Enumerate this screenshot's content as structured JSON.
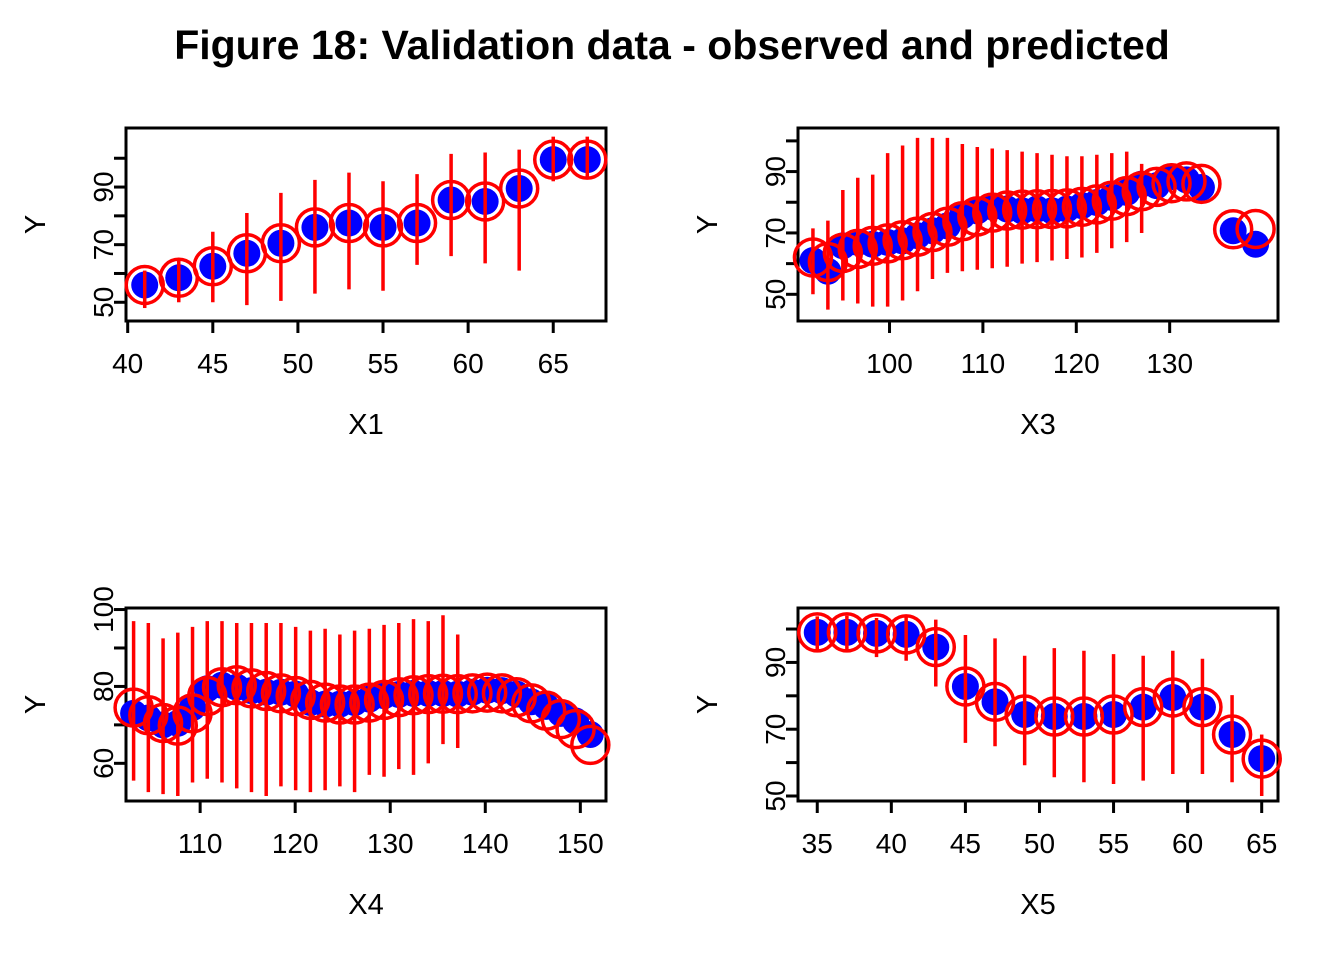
{
  "chart_data": {
    "type": "scatter",
    "title": "Figure 18: Validation data - observed and predicted",
    "grid": "off",
    "legend": "none",
    "colors": {
      "observed": "#0000ff",
      "predicted": "#ff0000",
      "axis": "#000000",
      "background": "#ffffff"
    },
    "marker_semantics": {
      "observed": "solid blue filled circle",
      "predicted": "open red circle",
      "interval": "red vertical line (prediction interval)"
    },
    "panels": [
      {
        "id": "x1",
        "xlabel": "X1",
        "ylabel": "Y",
        "xlim": [
          39.9,
          68.1
        ],
        "ylim": [
          43.5,
          110.5
        ],
        "xticks": [
          40,
          45,
          50,
          55,
          60,
          65
        ],
        "yticks": [
          50,
          60,
          70,
          80,
          90,
          100
        ],
        "ytick_labels": [
          50,
          70,
          90
        ],
        "x": [
          41,
          43,
          45,
          47,
          49,
          51,
          53,
          55,
          57,
          59,
          61,
          63,
          65,
          67
        ],
        "observed": [
          56,
          58.5,
          62.5,
          67,
          70.5,
          76,
          77.5,
          76,
          77.5,
          85.5,
          85,
          89.5,
          99.5,
          99.5
        ],
        "predicted": [
          56,
          58.5,
          62.5,
          67,
          70.5,
          76,
          77.5,
          76,
          77.5,
          85.5,
          85,
          89.5,
          99.5,
          99.5
        ],
        "ci_low": [
          48,
          50,
          50,
          49,
          50.5,
          53,
          54.5,
          54,
          63,
          66,
          63.5,
          61,
          92,
          93
        ],
        "ci_high": [
          61,
          64.5,
          74.5,
          81,
          88,
          92.5,
          95,
          92,
          94.5,
          101.5,
          102,
          103,
          107.5,
          107.5
        ]
      },
      {
        "id": "x3",
        "xlabel": "X3",
        "ylabel": "Y",
        "xlim": [
          90.2,
          141.6
        ],
        "ylim": [
          41.3,
          104.2
        ],
        "xticks": [
          100,
          110,
          120,
          130
        ],
        "yticks": [
          50,
          60,
          70,
          80,
          90,
          100
        ],
        "ytick_labels": [
          50,
          70,
          90
        ],
        "x": [
          91.8,
          93.4,
          95.0,
          96.6,
          98.2,
          99.8,
          101.4,
          103.0,
          104.6,
          106.2,
          107.8,
          109.4,
          111.0,
          112.6,
          114.2,
          115.8,
          117.4,
          119.0,
          120.6,
          122.2,
          123.8,
          125.4,
          127.0,
          128.6,
          130.2,
          131.8,
          133.4,
          136.8,
          139.2
        ],
        "observed": [
          61,
          57.5,
          65.8,
          66.9,
          66.3,
          66.9,
          67.4,
          69.1,
          70.7,
          72.3,
          75.6,
          77.2,
          78.5,
          77.8,
          77.2,
          77.8,
          77.2,
          77.8,
          78.9,
          79.9,
          81.6,
          83.2,
          85.9,
          85.4,
          88.3,
          87.3,
          84.8,
          70.7,
          66.3
        ],
        "predicted": [
          62,
          60.5,
          63.5,
          64.8,
          65.8,
          66.6,
          67.6,
          68.8,
          70.3,
          72,
          73.8,
          75.4,
          76.6,
          77.3,
          77.6,
          77.7,
          77.8,
          78,
          78.5,
          79.3,
          80.5,
          82,
          83.6,
          85,
          86.2,
          86.8,
          86,
          71.2,
          71.3
        ],
        "ci_low": [
          50,
          45,
          48,
          47,
          46,
          46,
          48,
          51,
          55,
          57,
          57.5,
          58,
          58.5,
          59,
          60,
          60.5,
          61,
          61.5,
          62,
          63.5,
          65,
          67,
          70,
          null,
          null,
          null,
          null,
          null,
          null
        ],
        "ci_high": [
          71.5,
          74,
          84,
          88,
          89,
          96,
          98.5,
          101,
          101,
          101,
          99,
          98,
          97.5,
          97,
          96.5,
          96,
          95.5,
          95,
          95,
          95.5,
          96,
          96.5,
          92.5,
          null,
          null,
          null,
          null,
          null,
          null
        ]
      },
      {
        "id": "x4",
        "xlabel": "X4",
        "ylabel": "Y",
        "xlim": [
          102.2,
          152.7
        ],
        "ylim": [
          50.2,
          100.4
        ],
        "xticks": [
          110,
          120,
          130,
          140,
          150
        ],
        "yticks": [
          60,
          70,
          80,
          90,
          100
        ],
        "ytick_labels": [
          60,
          80,
          100
        ],
        "x": [
          103.0,
          104.55,
          106.1,
          107.65,
          109.2,
          110.75,
          112.3,
          113.85,
          115.4,
          116.95,
          118.5,
          120.05,
          121.6,
          123.15,
          124.7,
          126.25,
          127.8,
          129.35,
          130.9,
          132.45,
          134.0,
          135.55,
          137.1,
          138.65,
          140.2,
          141.75,
          143.3,
          144.85,
          146.4,
          147.95,
          149.5,
          151.05
        ],
        "observed": [
          73,
          71.8,
          70,
          70.4,
          74.5,
          79.4,
          80.3,
          79.8,
          78.9,
          78.5,
          78.5,
          78,
          75.8,
          75.4,
          75.4,
          75.8,
          76.7,
          77.6,
          77.9,
          78.2,
          78.2,
          78.2,
          78,
          78.5,
          79,
          78.9,
          78,
          76,
          74.8,
          73,
          71,
          67.5
        ],
        "predicted": [
          74.5,
          72.5,
          70.5,
          69.8,
          73,
          77.5,
          79.8,
          80.3,
          79.5,
          78.8,
          78.2,
          77.5,
          76.5,
          75.8,
          75.3,
          75.3,
          75.8,
          76.5,
          77.2,
          77.7,
          78,
          78.1,
          78,
          78.2,
          78.4,
          78.2,
          77.2,
          75.6,
          73.7,
          71.5,
          68.9,
          64.8
        ],
        "ci_low": [
          55.5,
          52.5,
          52,
          51.5,
          55,
          56,
          55,
          53.5,
          52.5,
          51.5,
          54,
          53,
          52.5,
          53,
          54,
          52.5,
          57,
          56.5,
          58.5,
          57,
          60,
          65,
          64,
          null,
          null,
          null,
          null,
          null,
          null,
          null,
          null,
          null
        ],
        "ci_high": [
          97,
          96.5,
          92.5,
          94,
          95.5,
          97,
          97,
          96.5,
          96.5,
          96.5,
          96.5,
          95.5,
          94.5,
          95,
          93.5,
          94.5,
          95,
          96,
          96.5,
          97.5,
          97,
          98.5,
          93.5,
          null,
          null,
          null,
          null,
          null,
          null,
          null,
          null,
          null
        ]
      },
      {
        "id": "x5",
        "xlabel": "X5",
        "ylabel": "Y",
        "xlim": [
          33.7,
          66.1
        ],
        "ylim": [
          48.5,
          106.3
        ],
        "xticks": [
          35,
          40,
          45,
          50,
          55,
          60,
          65
        ],
        "yticks": [
          50,
          60,
          70,
          80,
          90,
          100
        ],
        "ytick_labels": [
          50,
          70,
          90
        ],
        "x": [
          35,
          37,
          39,
          41,
          43,
          45,
          47,
          49,
          51,
          53,
          55,
          57,
          59,
          61,
          63,
          65
        ],
        "observed": [
          99,
          99,
          98.7,
          98.4,
          94.6,
          82.8,
          78.2,
          74.4,
          73.8,
          73.8,
          74.4,
          76.6,
          79.5,
          76.6,
          68.4,
          61.2
        ],
        "predicted": [
          99,
          99,
          98.7,
          98.4,
          94.6,
          82.8,
          78.2,
          74.4,
          73.8,
          73.8,
          74.4,
          76.6,
          79.5,
          76.6,
          68.4,
          61.2
        ],
        "ci_low": [
          93.5,
          93.5,
          91.6,
          90.5,
          82.8,
          65.9,
          64.9,
          59.2,
          55.6,
          54.1,
          53.6,
          54.6,
          56.6,
          56.6,
          54.1,
          50
        ],
        "ci_high": [
          103.8,
          104,
          103.3,
          103.8,
          102.8,
          98.2,
          97.2,
          92,
          94.3,
          93.5,
          92.5,
          92,
          93.5,
          91.1,
          80.2,
          68.4
        ]
      }
    ]
  }
}
